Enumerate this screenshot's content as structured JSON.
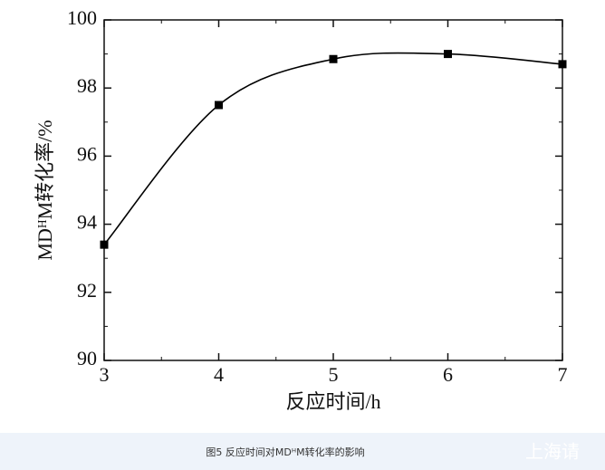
{
  "chart_data": {
    "type": "line",
    "x_label": "反应时间/h",
    "y_label": "MDᴴM转化率/%",
    "caption": "图5 反应时间对MDᴴM转化率的影响",
    "watermark": "上海请",
    "x": [
      3,
      4,
      5,
      6,
      7
    ],
    "series": [
      {
        "name": "MDᴴM转化率",
        "color": "#000000",
        "values": [
          93.4,
          97.5,
          98.85,
          99.0,
          98.7
        ]
      }
    ],
    "xlim": [
      3,
      7
    ],
    "xticks": [
      3,
      4,
      5,
      6,
      7
    ],
    "ylim": [
      90,
      100
    ],
    "yticks": [
      90,
      92,
      94,
      96,
      98,
      100
    ],
    "marker": "square",
    "smooth": true
  }
}
